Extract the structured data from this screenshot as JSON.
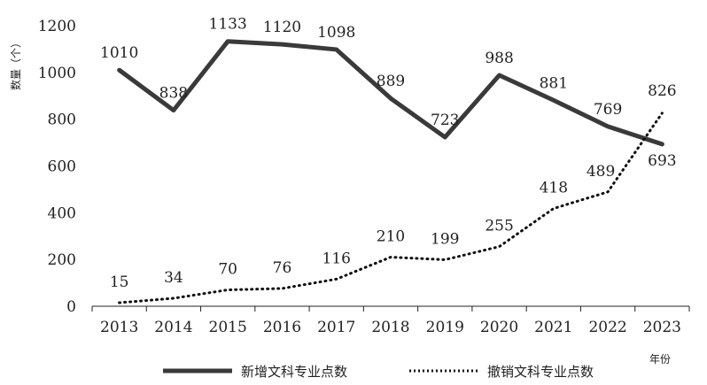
{
  "chart_data": {
    "type": "line",
    "title": "",
    "xlabel": "年份",
    "ylabel": "数量（个）",
    "categories": [
      "2013",
      "2014",
      "2015",
      "2016",
      "2017",
      "2018",
      "2019",
      "2020",
      "2021",
      "2022",
      "2023"
    ],
    "ylim": [
      0,
      1200
    ],
    "yticks": [
      0,
      200,
      400,
      600,
      800,
      1000,
      1200
    ],
    "grid": false,
    "legend_position": "bottom",
    "series": [
      {
        "name": "新增文科专业点数",
        "style": "solid",
        "color": "#3a3a3a",
        "values": [
          1010,
          838,
          1133,
          1120,
          1098,
          889,
          723,
          988,
          881,
          769,
          693
        ]
      },
      {
        "name": "撤销文科专业点数",
        "style": "dotted",
        "color": "#111111",
        "values": [
          15,
          34,
          70,
          76,
          116,
          210,
          199,
          255,
          418,
          489,
          826
        ]
      }
    ]
  }
}
